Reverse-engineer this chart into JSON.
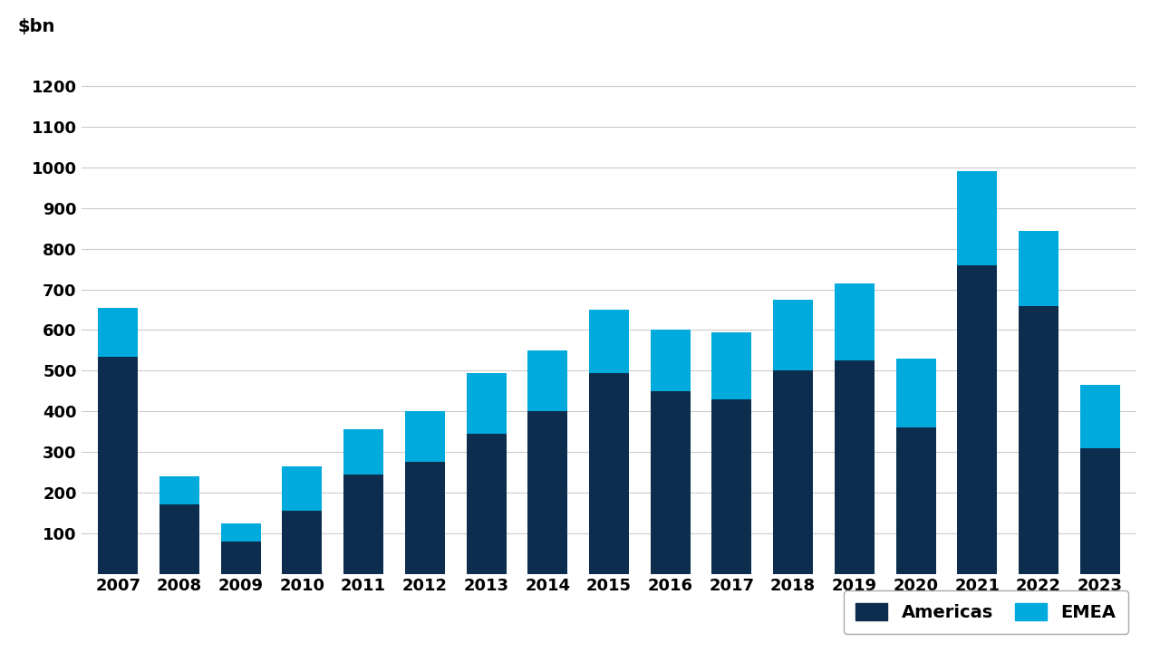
{
  "years": [
    2007,
    2008,
    2009,
    2010,
    2011,
    2012,
    2013,
    2014,
    2015,
    2016,
    2017,
    2018,
    2019,
    2020,
    2021,
    2022,
    2023
  ],
  "americas": [
    535,
    170,
    80,
    155,
    245,
    275,
    345,
    400,
    495,
    450,
    430,
    500,
    525,
    360,
    760,
    660,
    310
  ],
  "emea": [
    120,
    70,
    45,
    110,
    110,
    125,
    150,
    150,
    155,
    150,
    165,
    175,
    190,
    170,
    230,
    185,
    155
  ],
  "americas_color": "#0d2d4e",
  "emea_color": "#00aadd",
  "ylabel": "$bn",
  "ylim": [
    0,
    1300
  ],
  "yticks": [
    0,
    100,
    200,
    300,
    400,
    500,
    600,
    700,
    800,
    900,
    1000,
    1100,
    1200
  ],
  "legend_labels": [
    "Americas",
    "EMEA"
  ],
  "background_color": "#ffffff",
  "grid_color": "#cccccc",
  "bar_width": 0.65
}
